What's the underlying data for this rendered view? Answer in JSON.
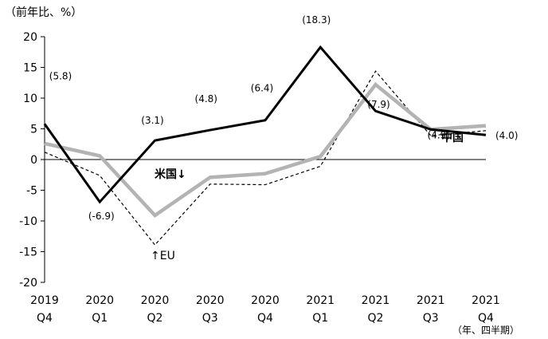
{
  "chart_data": {
    "type": "line",
    "unit_label": "（前年比、%）",
    "period_label": "（年、四半期）",
    "categories": [
      {
        "year": "2019",
        "quarter": "Q4"
      },
      {
        "year": "2020",
        "quarter": "Q1"
      },
      {
        "year": "2020",
        "quarter": "Q2"
      },
      {
        "year": "2020",
        "quarter": "Q3"
      },
      {
        "year": "2020",
        "quarter": "Q4"
      },
      {
        "year": "2021",
        "quarter": "Q1"
      },
      {
        "year": "2021",
        "quarter": "Q2"
      },
      {
        "year": "2021",
        "quarter": "Q3"
      },
      {
        "year": "2021",
        "quarter": "Q4"
      }
    ],
    "ylim": [
      -20,
      20
    ],
    "yticks": [
      "20",
      "15",
      "10",
      "5",
      "0",
      "-5",
      "-10",
      "-15",
      "-20"
    ],
    "grid": false,
    "series": [
      {
        "name": "中国",
        "color": "#000000",
        "style": "solid-thick",
        "values": [
          5.8,
          -6.9,
          3.1,
          4.8,
          6.4,
          18.3,
          7.9,
          4.9,
          4.0
        ],
        "data_labels": [
          "(5.8)",
          "(-6.9)",
          "(3.1)",
          "(4.8)",
          "(6.4)",
          "(18.3)",
          "(7.9)",
          "(4.9)",
          "(4.0)"
        ]
      },
      {
        "name": "米国",
        "color": "#b3b3b3",
        "style": "solid-thick",
        "values": [
          2.6,
          0.6,
          -9.1,
          -2.9,
          -2.3,
          0.5,
          12.2,
          4.9,
          5.5
        ]
      },
      {
        "name": "EU",
        "color": "#000000",
        "style": "dashed",
        "values": [
          1.2,
          -2.6,
          -13.9,
          -4.0,
          -4.1,
          -1.1,
          14.4,
          3.9,
          4.7
        ]
      }
    ],
    "annotations": {
      "us_label": "米国↓",
      "eu_label": "↑EU"
    }
  }
}
